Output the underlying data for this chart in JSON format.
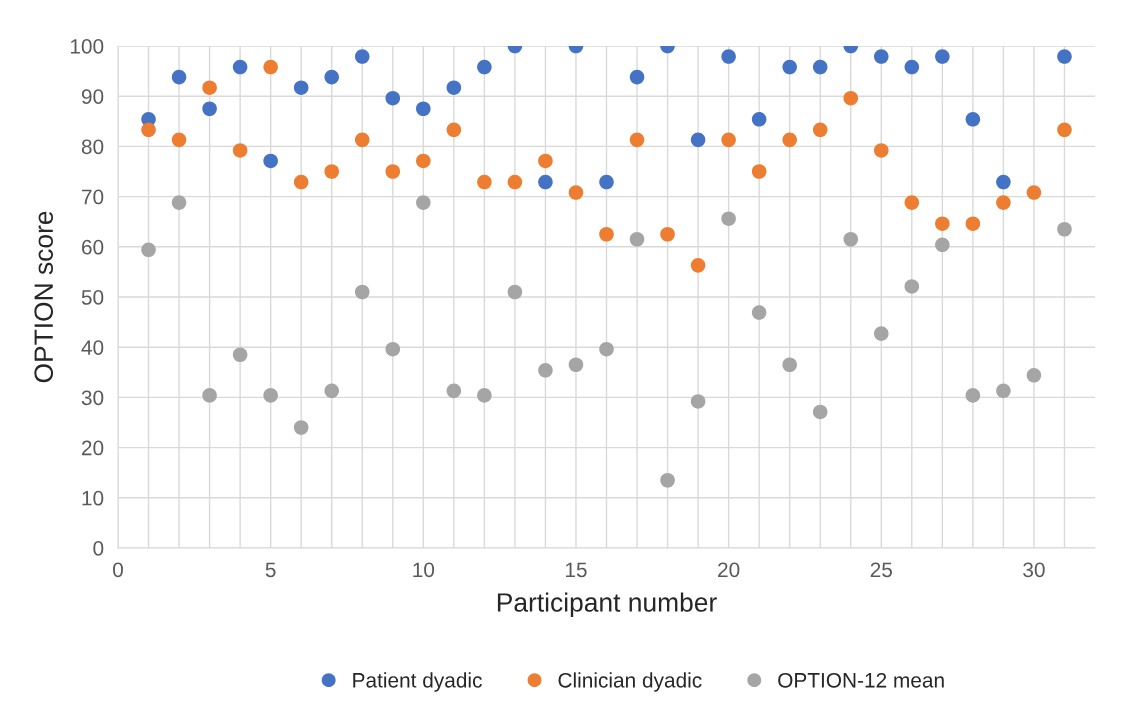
{
  "chart_data": {
    "type": "scatter",
    "xlabel": "Participant number",
    "ylabel": "OPTION score",
    "x": [
      1,
      2,
      3,
      4,
      5,
      6,
      7,
      8,
      9,
      10,
      11,
      12,
      13,
      14,
      15,
      16,
      17,
      18,
      19,
      20,
      21,
      22,
      23,
      24,
      25,
      26,
      27,
      28,
      29,
      30,
      31
    ],
    "series": [
      {
        "name": "Patient dyadic",
        "color": "#4472c4",
        "values": [
          85.4,
          93.8,
          87.5,
          95.8,
          77.1,
          91.7,
          93.8,
          97.9,
          89.6,
          87.5,
          91.7,
          95.8,
          100,
          72.9,
          100,
          72.9,
          93.8,
          100,
          81.3,
          97.9,
          85.4,
          95.8,
          95.8,
          100,
          97.9,
          95.8,
          97.9,
          85.4,
          72.9,
          null,
          97.9
        ]
      },
      {
        "name": "Clinician dyadic",
        "color": "#ed7d31",
        "values": [
          83.3,
          81.3,
          91.7,
          79.2,
          95.8,
          72.9,
          75,
          81.3,
          75,
          77.1,
          83.3,
          72.9,
          72.9,
          77.1,
          70.8,
          62.5,
          81.3,
          62.5,
          56.3,
          81.3,
          75,
          81.3,
          83.3,
          89.6,
          79.2,
          68.8,
          64.6,
          64.6,
          68.8,
          70.8,
          83.3
        ]
      },
      {
        "name": "OPTION-12 mean",
        "color": "#a5a5a5",
        "values": [
          59.4,
          68.8,
          30.4,
          38.5,
          30.4,
          24,
          31.3,
          51,
          39.6,
          68.8,
          31.3,
          30.4,
          51,
          35.4,
          36.5,
          39.6,
          61.5,
          13.5,
          29.2,
          65.6,
          46.9,
          36.5,
          27.1,
          61.5,
          42.7,
          52.1,
          60.4,
          30.4,
          31.3,
          34.4,
          63.5
        ]
      }
    ],
    "xlim": [
      0,
      32
    ],
    "xticks": [
      0,
      {
        "value": 1,
        "label": null
      },
      {
        "value": 2,
        "label": null
      },
      {
        "value": 3,
        "label": null
      },
      {
        "value": 4,
        "label": null
      },
      5,
      {
        "value": 6,
        "label": null
      },
      {
        "value": 7,
        "label": null
      },
      {
        "value": 8,
        "label": null
      },
      {
        "value": 9,
        "label": null
      },
      10,
      {
        "value": 11,
        "label": null
      },
      {
        "value": 12,
        "label": null
      },
      {
        "value": 13,
        "label": null
      },
      {
        "value": 14,
        "label": null
      },
      15,
      {
        "value": 16,
        "label": null
      },
      {
        "value": 17,
        "label": null
      },
      {
        "value": 18,
        "label": null
      },
      {
        "value": 19,
        "label": null
      },
      20,
      {
        "value": 21,
        "label": null
      },
      {
        "value": 22,
        "label": null
      },
      {
        "value": 23,
        "label": null
      },
      {
        "value": 24,
        "label": null
      },
      25,
      {
        "value": 26,
        "label": null
      },
      {
        "value": 27,
        "label": null
      },
      {
        "value": 28,
        "label": null
      },
      {
        "value": 29,
        "label": null
      },
      30,
      {
        "value": 31,
        "label": null
      }
    ],
    "ylim": [
      0,
      100
    ],
    "yticks": [
      0,
      10,
      20,
      30,
      40,
      50,
      60,
      70,
      80,
      90,
      100
    ],
    "grid": true,
    "legend": "bottom",
    "marker": "circle"
  }
}
